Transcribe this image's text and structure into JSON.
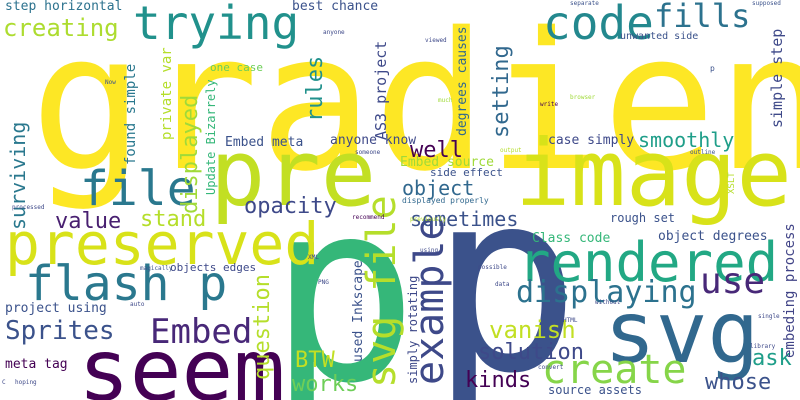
{
  "word_cloud": {
    "words": [
      {
        "text": "gradient",
        "color": "#fde725"
      },
      {
        "text": "p",
        "color": "#35b779"
      },
      {
        "text": "p",
        "color": "#3b528b"
      },
      {
        "text": "image",
        "color": "#d8e219"
      },
      {
        "text": "pre",
        "color": "#c2df23"
      },
      {
        "text": "seem",
        "color": "#440154"
      },
      {
        "text": "svg",
        "color": "#31688e"
      },
      {
        "text": "preserved",
        "color": "#d8e219"
      },
      {
        "text": "code",
        "color": "#23888e"
      },
      {
        "text": "trying",
        "color": "#21918c"
      },
      {
        "text": "rendered",
        "color": "#22a884"
      },
      {
        "text": "flash p",
        "color": "#2a788e"
      },
      {
        "text": "file",
        "color": "#2a788e"
      },
      {
        "text": "svg file",
        "color": "#b5de2b"
      },
      {
        "text": "create",
        "color": "#86d549"
      },
      {
        "text": "example",
        "color": "#3e4989"
      },
      {
        "text": "Embed",
        "color": "#482878"
      },
      {
        "text": "creating",
        "color": "#addc30"
      },
      {
        "text": "fills",
        "color": "#2c728e"
      },
      {
        "text": "use",
        "color": "#482878"
      },
      {
        "text": "displaying",
        "color": "#2c728e"
      },
      {
        "text": "Sprites",
        "color": "#3b528b"
      },
      {
        "text": "solution",
        "color": "#3e4989"
      },
      {
        "text": "kinds",
        "color": "#440154"
      },
      {
        "text": "whose",
        "color": "#3b528b"
      },
      {
        "text": "vanish",
        "color": "#c2df23"
      },
      {
        "text": "BTW",
        "color": "#c2df23"
      },
      {
        "text": "works",
        "color": "#6ece58"
      },
      {
        "text": "question",
        "color": "#b5de2b"
      },
      {
        "text": "ask",
        "color": "#1f9e89"
      },
      {
        "text": "opacity",
        "color": "#3e4989"
      },
      {
        "text": "stand",
        "color": "#b5de2b"
      },
      {
        "text": "value",
        "color": "#481f70"
      },
      {
        "text": "sometimes",
        "color": "#3b528b"
      },
      {
        "text": "object",
        "color": "#31688e"
      },
      {
        "text": "well",
        "color": "#440154"
      },
      {
        "text": "smoothly",
        "color": "#1f9e89"
      },
      {
        "text": "setting",
        "color": "#31688e"
      },
      {
        "text": "rules",
        "color": "#21918c"
      },
      {
        "text": "displayed",
        "color": "#a0da39"
      },
      {
        "text": "surviving",
        "color": "#2a788e"
      },
      {
        "text": "step horizontal",
        "color": "#2c728e"
      },
      {
        "text": "best chance",
        "color": "#3b528b"
      },
      {
        "text": "AS3 project",
        "color": "#3e4989"
      },
      {
        "text": "degrees causes",
        "color": "#31688e"
      },
      {
        "text": "simple step",
        "color": "#3e4989"
      },
      {
        "text": "embeding process",
        "color": "#414487"
      },
      {
        "text": "found simple",
        "color": "#2a788e"
      },
      {
        "text": "private var",
        "color": "#b5de2b"
      },
      {
        "text": "Update Bizarrely",
        "color": "#35b779"
      },
      {
        "text": "Embed meta",
        "color": "#3b528b"
      },
      {
        "text": "anyone know",
        "color": "#3e4989"
      },
      {
        "text": "case simply",
        "color": "#3e4989"
      },
      {
        "text": "Embed source",
        "color": "#a0da39"
      },
      {
        "text": "side effect",
        "color": "#3b528b"
      },
      {
        "text": "rough set",
        "color": "#3b528b"
      },
      {
        "text": "Class code",
        "color": "#35b779"
      },
      {
        "text": "object degrees",
        "color": "#3b528b"
      },
      {
        "text": "objects edges",
        "color": "#3e4989"
      },
      {
        "text": "project using",
        "color": "#3b528b"
      },
      {
        "text": "meta tag",
        "color": "#440154"
      },
      {
        "text": "used Inkscape",
        "color": "#3b528b"
      },
      {
        "text": "simply rotating",
        "color": "#3e4989"
      },
      {
        "text": "source assets",
        "color": "#3b528b"
      },
      {
        "text": "one case",
        "color": "#6ece58"
      },
      {
        "text": "unwanted side",
        "color": "#3b528b"
      },
      {
        "text": "XSLT",
        "color": "#b5de2b"
      },
      {
        "text": "anyone",
        "color": "#3e4989"
      },
      {
        "text": "viewed",
        "color": "#3e4989"
      },
      {
        "text": "separate",
        "color": "#3b528b"
      },
      {
        "text": "supposed",
        "color": "#3b528b"
      },
      {
        "text": "Now",
        "color": "#3b528b"
      },
      {
        "text": "p",
        "color": "#3b528b"
      },
      {
        "text": "write",
        "color": "#440154"
      },
      {
        "text": "browser",
        "color": "#a0da39"
      },
      {
        "text": "much",
        "color": "#a0da39"
      },
      {
        "text": "someone",
        "color": "#3e4989"
      },
      {
        "text": "output",
        "color": "#b5de2b"
      },
      {
        "text": "outline",
        "color": "#3b528b"
      },
      {
        "text": "processed",
        "color": "#3e4989"
      },
      {
        "text": "recommend",
        "color": "#440154"
      },
      {
        "text": "previously",
        "color": "#b5de2b"
      },
      {
        "text": "displayed properly",
        "color": "#31688e"
      },
      {
        "text": "using",
        "color": "#3e4989"
      },
      {
        "text": "XML",
        "color": "#3e4989"
      },
      {
        "text": "possible",
        "color": "#3e4989"
      },
      {
        "text": "PNG",
        "color": "#3e4989"
      },
      {
        "text": "magically",
        "color": "#3b528b"
      },
      {
        "text": "auto",
        "color": "#3e4989"
      },
      {
        "text": "data",
        "color": "#3e4989"
      },
      {
        "text": "convert",
        "color": "#3e4989"
      },
      {
        "text": "HTML",
        "color": "#3e4989"
      },
      {
        "text": "without",
        "color": "#3e4989"
      },
      {
        "text": "single",
        "color": "#3e4989"
      },
      {
        "text": "library",
        "color": "#3e4989"
      },
      {
        "text": "hoping",
        "color": "#3e4989"
      },
      {
        "text": "C",
        "color": "#3e4989"
      }
    ]
  }
}
